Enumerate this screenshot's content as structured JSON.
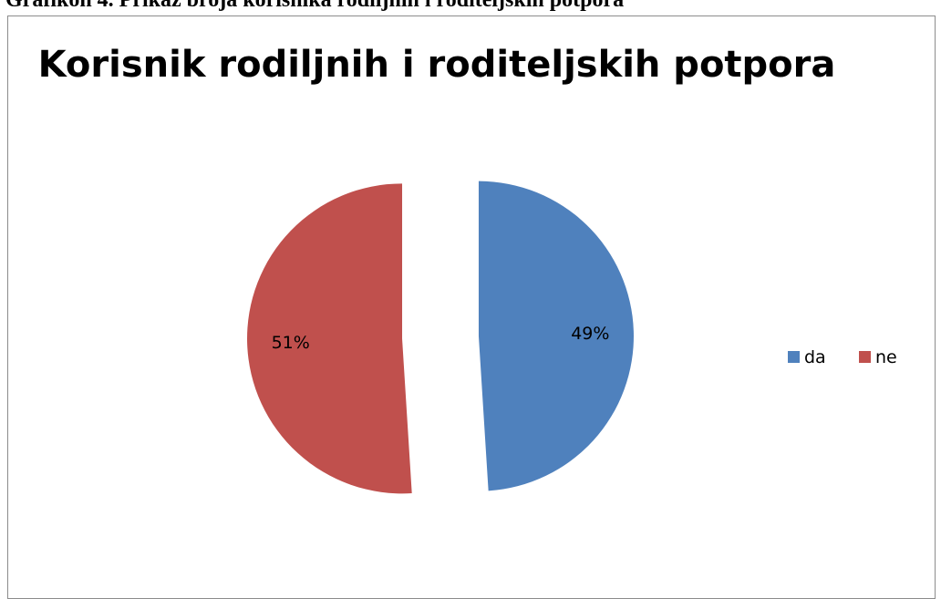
{
  "figure": {
    "caption": "Grafikon 4. Prikaz broja korisnika rodiljnih i roditeljskih potpora"
  },
  "chart_data": {
    "type": "pie",
    "title": "Korisnik rodiljnih i roditeljskih potpora",
    "slices": [
      {
        "name": "da",
        "label": "49%",
        "value": 49,
        "color": "#4f81bd"
      },
      {
        "name": "ne",
        "label": "51%",
        "value": 51,
        "color": "#c0504d"
      }
    ],
    "start_angle_deg": 0,
    "direction": "clockwise",
    "exploded": true,
    "legend": {
      "position": "right",
      "orientation": "horizontal"
    }
  }
}
